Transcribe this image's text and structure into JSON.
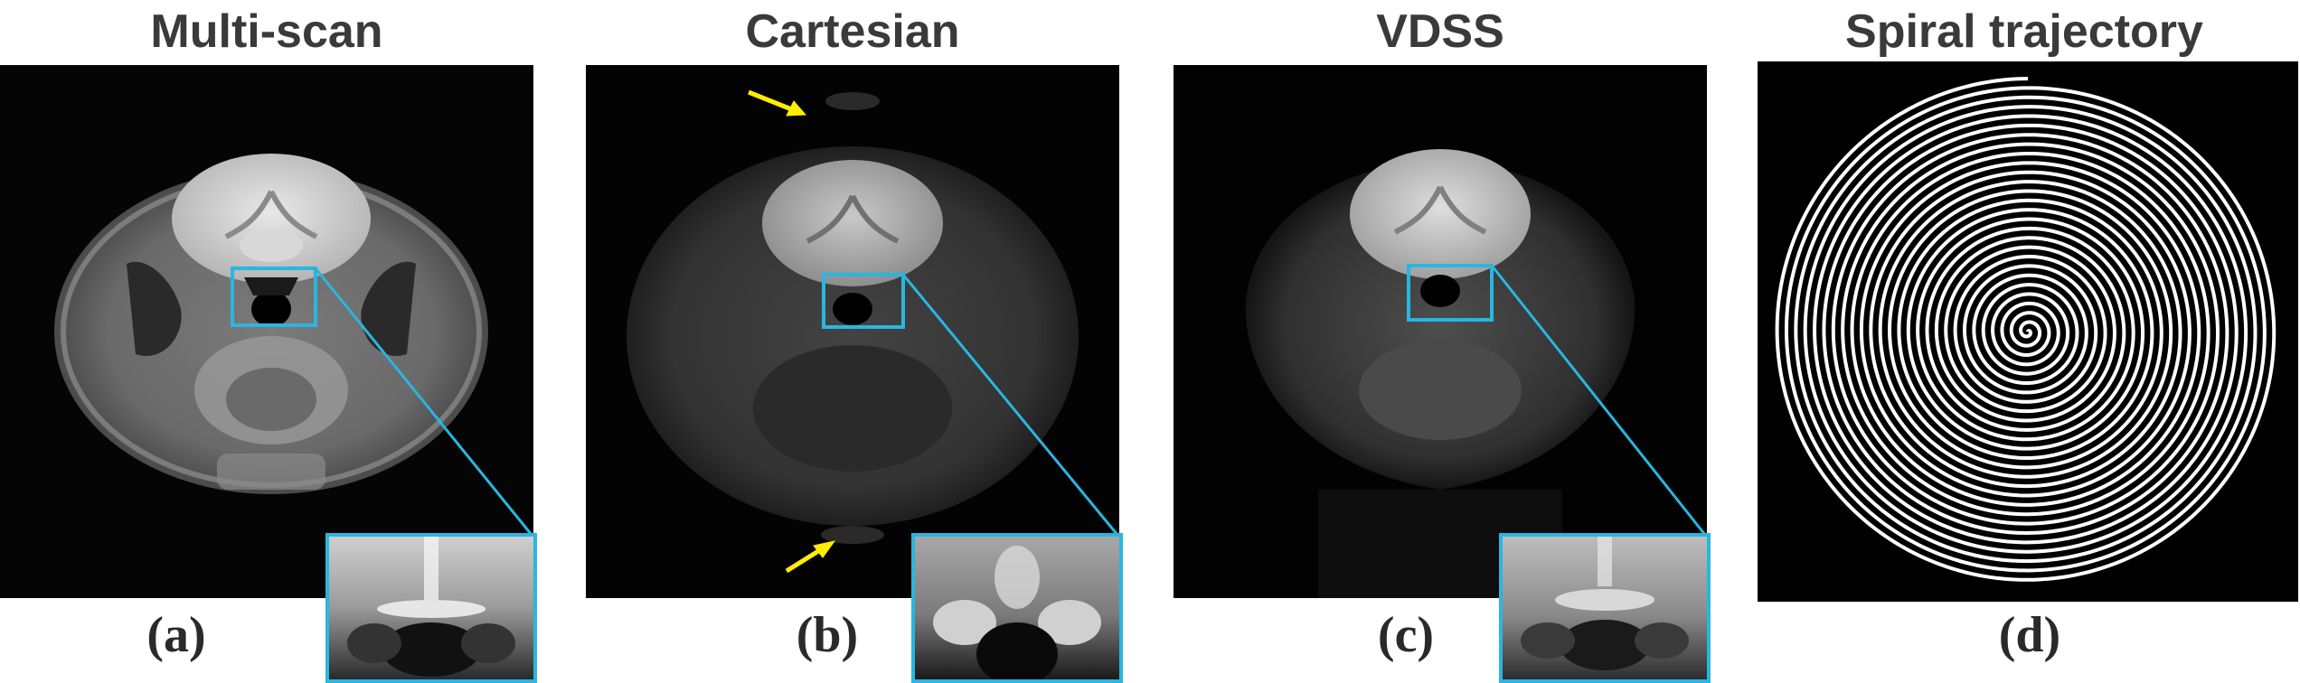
{
  "panels": [
    {
      "title": "Multi-scan",
      "label": "(a)"
    },
    {
      "title": "Cartesian",
      "label": "(b)"
    },
    {
      "title": "VDSS",
      "label": "(c)"
    },
    {
      "title": "Spiral trajectory",
      "label": "(d)"
    }
  ],
  "colors": {
    "zoom_box": "#29b6e0",
    "arrow": "#ffee00",
    "background": "#000000",
    "spiral": "#ffffff"
  }
}
